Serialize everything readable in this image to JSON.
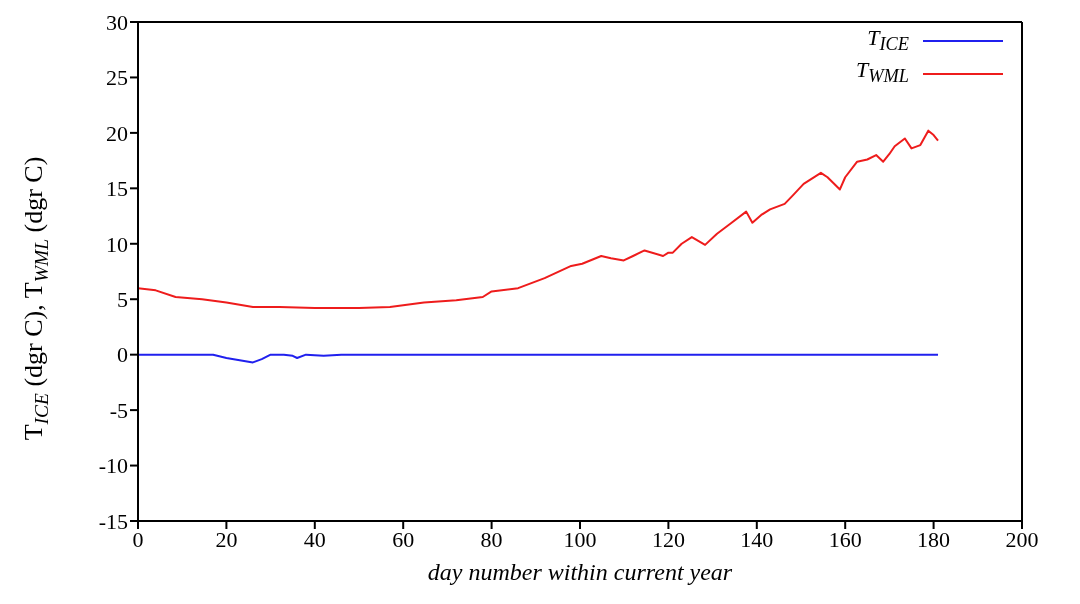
{
  "chart_data": {
    "type": "line",
    "xlabel": "day number within current year",
    "ylabel": "T$_{ICE}$ (dgr C), T$_{WML}$ (dgr C)",
    "xlim": [
      0,
      200
    ],
    "xticks": [
      0,
      20,
      40,
      60,
      80,
      100,
      120,
      140,
      160,
      180,
      200
    ],
    "ylim": [
      -15,
      30
    ],
    "yticks": [
      -15,
      -10,
      -5,
      0,
      5,
      10,
      15,
      20,
      25,
      30
    ],
    "grid": false,
    "legend": "top right",
    "marker": "none",
    "line_style": "solid",
    "series": [
      {
        "name": "T$_{ICE}$",
        "color": "#2020ee",
        "x": [
          0,
          17,
          20,
          23,
          26,
          28,
          30,
          33,
          35,
          36,
          38,
          42,
          46,
          50,
          55,
          100,
          181
        ],
        "values": [
          0,
          0,
          -0.3,
          -0.5,
          -0.7,
          -0.4,
          0,
          0,
          -0.1,
          -0.3,
          0,
          -0.1,
          0,
          0,
          0,
          0,
          0
        ]
      },
      {
        "name": "T$_{WML}$",
        "color": "#ee1c1c",
        "x": [
          0,
          4,
          8.5,
          14.5,
          20,
          26,
          32,
          40,
          50,
          57,
          64.7,
          72,
          78,
          80,
          86,
          92,
          98,
          100.5,
          104.8,
          107,
          109.9,
          112,
          114.6,
          118.8,
          120,
          121,
          123,
          125.3,
          128.3,
          131,
          134,
          137.6,
          139,
          141,
          143,
          146.3,
          148,
          150.6,
          154.5,
          156,
          158.8,
          160,
          162.7,
          165,
          167,
          168.6,
          170,
          171.2,
          173.5,
          175,
          177,
          178.8,
          180,
          181
        ],
        "values": [
          6,
          5.8,
          5.2,
          5,
          4.7,
          4.3,
          4.3,
          4.2,
          4.2,
          4.3,
          4.7,
          4.9,
          5.2,
          5.7,
          6,
          6.9,
          8,
          8.2,
          8.9,
          8.7,
          8.5,
          8.9,
          9.4,
          8.9,
          9.2,
          9.2,
          10,
          10.6,
          9.9,
          10.9,
          11.8,
          12.9,
          11.9,
          12.6,
          13.1,
          13.6,
          14.3,
          15.4,
          16.4,
          16,
          14.9,
          16,
          17.4,
          17.6,
          18,
          17.4,
          18.1,
          18.8,
          19.5,
          18.6,
          18.9,
          20.2,
          19.8,
          19.3
        ]
      }
    ]
  }
}
